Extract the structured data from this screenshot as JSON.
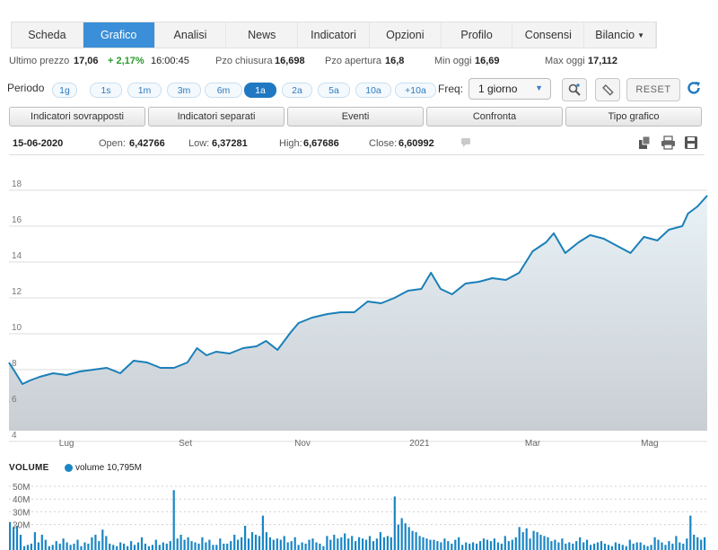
{
  "tabs": [
    {
      "label": "Scheda",
      "active": false
    },
    {
      "label": "Grafico",
      "active": true
    },
    {
      "label": "Analisi",
      "active": false
    },
    {
      "label": "News",
      "active": false
    },
    {
      "label": "Indicatori",
      "active": false
    },
    {
      "label": "Opzioni",
      "active": false
    },
    {
      "label": "Profilo",
      "active": false
    },
    {
      "label": "Consensi",
      "active": false
    },
    {
      "label": "Bilancio",
      "active": false,
      "dropdown": true
    }
  ],
  "quote": {
    "last_label": "Ultimo prezzo",
    "last_value": "17,06",
    "change": "+ 2,17%",
    "time": "16:00:45",
    "close_label": "Pzo chiusura",
    "close_value": "16,698",
    "open_label": "Pzo apertura",
    "open_value": "16,8",
    "min_label": "Min oggi",
    "min_value": "16,69",
    "max_label": "Max oggi",
    "max_value": "17,112"
  },
  "period": {
    "label": "Periodo",
    "options": [
      "1g",
      "1s",
      "1m",
      "3m",
      "6m",
      "1a",
      "2a",
      "5a",
      "10a",
      "+10a"
    ],
    "active": "1a",
    "freq_label": "Freq:",
    "freq_value": "1 giorno",
    "reset_label": "RESET"
  },
  "toolbar_buttons": [
    "Indicatori sovrapposti",
    "Indicatori separati",
    "Eventi",
    "Confronta",
    "Tipo grafico"
  ],
  "info": {
    "date": "15-06-2020",
    "open_label": "Open:",
    "open": "6,42766",
    "low_label": "Low:",
    "low": "6,37281",
    "high_label": "High:",
    "high": "6,67686",
    "close_label": "Close:",
    "close": "6,60992"
  },
  "colors": {
    "accent": "#3b8fd8",
    "line": "#1a7fb8",
    "bars": "#1a86c4",
    "positive": "#2a9a2a"
  },
  "chart_data": [
    {
      "type": "area",
      "ylim": [
        4,
        18
      ],
      "yticks": [
        4,
        6,
        8,
        10,
        12,
        14,
        16,
        18
      ],
      "xticks": [
        "Lug",
        "Set",
        "Nov",
        "2021",
        "Mar",
        "Mag"
      ],
      "x_range": [
        "2020-06-15",
        "2021-06-14"
      ],
      "series": [
        {
          "points": [
            [
              "2020-06-15",
              7.8
            ],
            [
              "2020-06-18",
              7.3
            ],
            [
              "2020-06-22",
              6.6
            ],
            [
              "2020-06-26",
              6.8
            ],
            [
              "2020-07-01",
              7.0
            ],
            [
              "2020-07-08",
              7.2
            ],
            [
              "2020-07-15",
              7.1
            ],
            [
              "2020-07-22",
              7.3
            ],
            [
              "2020-07-29",
              7.4
            ],
            [
              "2020-08-05",
              7.5
            ],
            [
              "2020-08-12",
              7.2
            ],
            [
              "2020-08-19",
              7.9
            ],
            [
              "2020-08-26",
              7.8
            ],
            [
              "2020-09-02",
              7.5
            ],
            [
              "2020-09-09",
              7.5
            ],
            [
              "2020-09-16",
              7.8
            ],
            [
              "2020-09-21",
              8.6
            ],
            [
              "2020-09-26",
              8.2
            ],
            [
              "2020-10-01",
              8.4
            ],
            [
              "2020-10-08",
              8.3
            ],
            [
              "2020-10-15",
              8.6
            ],
            [
              "2020-10-22",
              8.7
            ],
            [
              "2020-10-27",
              9.0
            ],
            [
              "2020-11-02",
              8.5
            ],
            [
              "2020-11-09",
              9.5
            ],
            [
              "2020-11-13",
              10.0
            ],
            [
              "2020-11-20",
              10.3
            ],
            [
              "2020-11-28",
              10.5
            ],
            [
              "2020-12-05",
              10.6
            ],
            [
              "2020-12-12",
              10.6
            ],
            [
              "2020-12-19",
              11.2
            ],
            [
              "2020-12-26",
              11.1
            ],
            [
              "2021-01-02",
              11.4
            ],
            [
              "2021-01-09",
              11.8
            ],
            [
              "2021-01-16",
              11.9
            ],
            [
              "2021-01-21",
              12.8
            ],
            [
              "2021-01-26",
              11.9
            ],
            [
              "2021-02-01",
              11.6
            ],
            [
              "2021-02-08",
              12.2
            ],
            [
              "2021-02-15",
              12.3
            ],
            [
              "2021-02-22",
              12.5
            ],
            [
              "2021-03-01",
              12.4
            ],
            [
              "2021-03-08",
              12.8
            ],
            [
              "2021-03-15",
              14.0
            ],
            [
              "2021-03-22",
              14.5
            ],
            [
              "2021-03-26",
              15.0
            ],
            [
              "2021-04-01",
              13.9
            ],
            [
              "2021-04-08",
              14.5
            ],
            [
              "2021-04-14",
              14.9
            ],
            [
              "2021-04-21",
              14.7
            ],
            [
              "2021-04-28",
              14.3
            ],
            [
              "2021-05-05",
              13.9
            ],
            [
              "2021-05-12",
              14.8
            ],
            [
              "2021-05-19",
              14.6
            ],
            [
              "2021-05-25",
              15.2
            ],
            [
              "2021-06-01",
              15.4
            ],
            [
              "2021-06-04",
              16.1
            ],
            [
              "2021-06-09",
              16.5
            ],
            [
              "2021-06-14",
              17.1
            ]
          ]
        }
      ]
    },
    {
      "type": "bar",
      "title": "VOLUME",
      "legend": "volume 10,795M",
      "ylim": [
        0,
        50
      ],
      "yticks": [
        "20M",
        "30M",
        "40M",
        "50M"
      ],
      "unit": "M",
      "values": [
        22,
        18,
        19,
        12,
        3,
        4,
        5,
        14,
        6,
        12,
        8,
        3,
        4,
        7,
        5,
        9,
        6,
        4,
        5,
        8,
        3,
        6,
        5,
        10,
        12,
        7,
        16,
        11,
        5,
        4,
        3,
        6,
        5,
        3,
        7,
        4,
        6,
        10,
        5,
        3,
        4,
        8,
        4,
        6,
        5,
        7,
        47,
        9,
        12,
        8,
        10,
        7,
        6,
        5,
        10,
        6,
        8,
        4,
        4,
        9,
        5,
        5,
        7,
        12,
        8,
        10,
        19,
        9,
        14,
        12,
        11,
        27,
        14,
        10,
        8,
        9,
        8,
        11,
        6,
        7,
        10,
        4,
        6,
        5,
        8,
        9,
        6,
        5,
        3,
        11,
        8,
        12,
        9,
        10,
        13,
        9,
        11,
        7,
        10,
        9,
        8,
        11,
        7,
        9,
        14,
        10,
        11,
        10,
        42,
        20,
        25,
        21,
        18,
        15,
        14,
        11,
        10,
        9,
        8,
        8,
        7,
        6,
        9,
        7,
        5,
        8,
        10,
        4,
        6,
        5,
        6,
        5,
        7,
        9,
        8,
        7,
        9,
        6,
        5,
        11,
        7,
        8,
        10,
        18,
        14,
        17,
        9,
        15,
        14,
        12,
        11,
        10,
        7,
        8,
        6,
        9,
        5,
        6,
        5,
        7,
        10,
        6,
        8,
        4,
        5,
        6,
        7,
        5,
        4,
        3,
        6,
        5,
        4,
        3,
        8,
        5,
        6,
        6,
        4,
        3,
        4,
        10,
        8,
        6,
        4,
        7,
        5,
        11,
        6,
        5,
        9,
        27,
        12,
        10,
        8,
        10
      ]
    }
  ]
}
